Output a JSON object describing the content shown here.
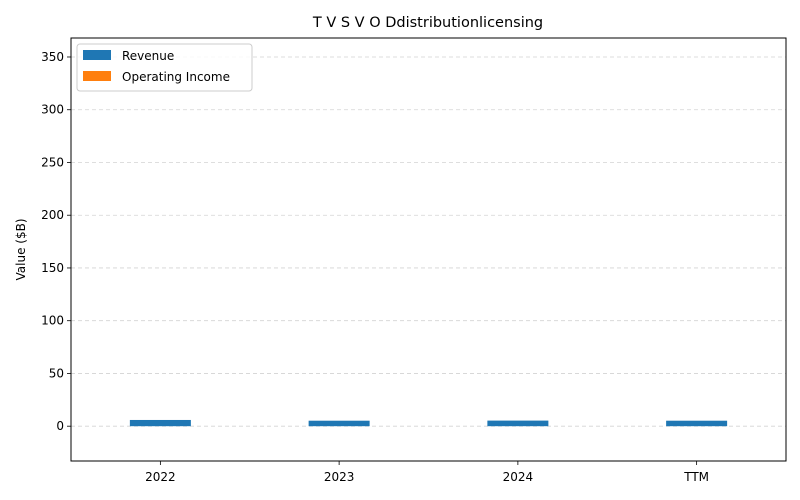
{
  "chart_data": {
    "type": "bar",
    "title": "T V S V O Ddistributionlicensing",
    "xlabel": "",
    "ylabel": "Value ($B)",
    "categories": [
      "2022",
      "2023",
      "2024",
      "TTM"
    ],
    "series": [
      {
        "name": "Revenue",
        "color": "#1f77b4",
        "values": [
          5.9,
          5.2,
          5.3,
          5.2
        ]
      },
      {
        "name": "Operating Income",
        "color": "#ff7f0e",
        "values": [
          0.0,
          0.0,
          0.0,
          0.0
        ]
      }
    ],
    "ylim": [
      -33,
      368
    ],
    "yticks": [
      0,
      50,
      100,
      150,
      200,
      250,
      300,
      350
    ],
    "grid": "y-dashed",
    "legend_position": "upper-left"
  }
}
